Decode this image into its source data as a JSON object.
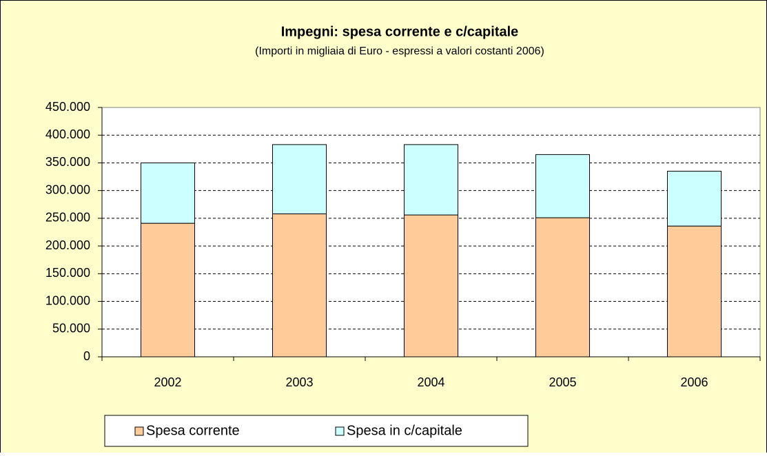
{
  "chart_data": {
    "type": "stacked_bar",
    "title": "Impegni: spesa corrente e c/capitale",
    "subtitle": "(Importi in migliaia di Euro - espressi a valori costanti 2006)",
    "categories": [
      "2002",
      "2003",
      "2004",
      "2005",
      "2006"
    ],
    "series": [
      {
        "name": "Spesa corrente",
        "color": "#ffcc99",
        "values": [
          241000,
          258000,
          256000,
          251000,
          236000
        ]
      },
      {
        "name": "Spesa in c/capitale",
        "color": "#ccffff",
        "values": [
          109000,
          125000,
          127000,
          114000,
          99000
        ]
      }
    ],
    "ylim": [
      0,
      450000
    ],
    "yticks": [
      0,
      {
        "value": 50000,
        "label": "50.000"
      },
      {
        "value": 100000,
        "label": "100.000"
      },
      {
        "value": 150000,
        "label": "150.000"
      },
      {
        "value": 200000,
        "label": "200.000"
      },
      {
        "value": 250000,
        "label": "250.000"
      },
      {
        "value": 300000,
        "label": "300.000"
      },
      {
        "value": 350000,
        "label": "350.000"
      },
      {
        "value": 400000,
        "label": "400.000"
      },
      {
        "value": 450000,
        "label": "450.000"
      }
    ],
    "grid": true,
    "legend": "bottom"
  }
}
